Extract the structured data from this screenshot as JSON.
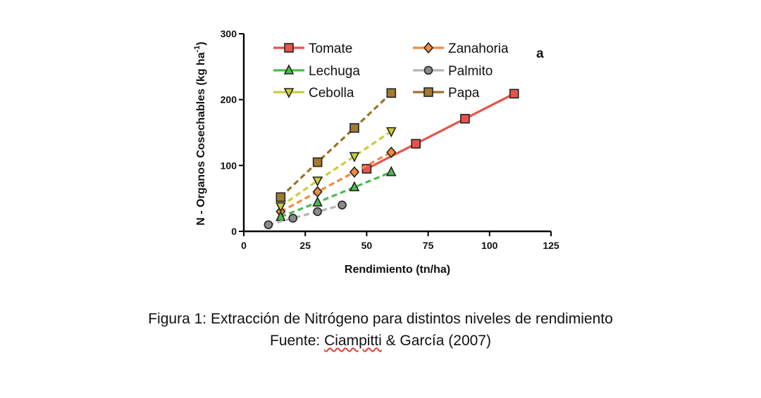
{
  "chart_data": {
    "type": "scatter",
    "panel_label": "a",
    "xlabel": "Rendimiento (tn/ha)",
    "ylabel": "N - Organos Cosechables (kg ha",
    "ylabel_sup": "-1",
    "ylabel_close": ")",
    "xlim": [
      0,
      125
    ],
    "ylim": [
      0,
      300
    ],
    "xticks": [
      0,
      25,
      50,
      75,
      100,
      125
    ],
    "yticks": [
      0,
      100,
      200,
      300
    ],
    "grid": false,
    "legend_position": "top, inside plot, two columns",
    "series": [
      {
        "name": "Tomate",
        "marker": "square",
        "line": "solid",
        "line_color": "#e8534a",
        "marker_color": "#e8534a",
        "x": [
          50,
          70,
          90,
          110
        ],
        "y": [
          95,
          133,
          171,
          209
        ]
      },
      {
        "name": "Zanahoria",
        "marker": "diamond",
        "line": "dashed",
        "line_color": "#f28c3a",
        "marker_color": "#f28c3a",
        "x": [
          15,
          30,
          45,
          60
        ],
        "y": [
          30,
          60,
          90,
          120
        ]
      },
      {
        "name": "Lechuga",
        "marker": "triangle-up",
        "line": "dashed",
        "line_color": "#4cba4c",
        "marker_color": "#4cba4c",
        "x": [
          15,
          30,
          45,
          60
        ],
        "y": [
          22,
          44,
          67,
          90
        ]
      },
      {
        "name": "Palmito",
        "marker": "circle",
        "line": "dashed",
        "line_color": "#b5b5b5",
        "marker_color": "#8a8a8a",
        "x": [
          10,
          20,
          30,
          40
        ],
        "y": [
          10,
          20,
          30,
          40
        ]
      },
      {
        "name": "Cebolla",
        "marker": "triangle-down",
        "line": "dashed",
        "line_color": "#c9cc3c",
        "marker_color": "#c9cc3c",
        "x": [
          15,
          30,
          45,
          60
        ],
        "y": [
          38,
          77,
          114,
          152
        ]
      },
      {
        "name": "Papa",
        "marker": "square",
        "line": "dashed",
        "line_color": "#9a7328",
        "marker_color": "#a57a30",
        "x": [
          15,
          30,
          45,
          60
        ],
        "y": [
          52,
          105,
          157,
          210
        ]
      }
    ]
  },
  "caption": {
    "line1": "Figura 1: Extracción de Nitrógeno para distintos niveles de rendimiento",
    "line2_prefix": "Fuente: ",
    "line2_author": "Ciampitti",
    "line2_suffix": " & García (2007)"
  }
}
